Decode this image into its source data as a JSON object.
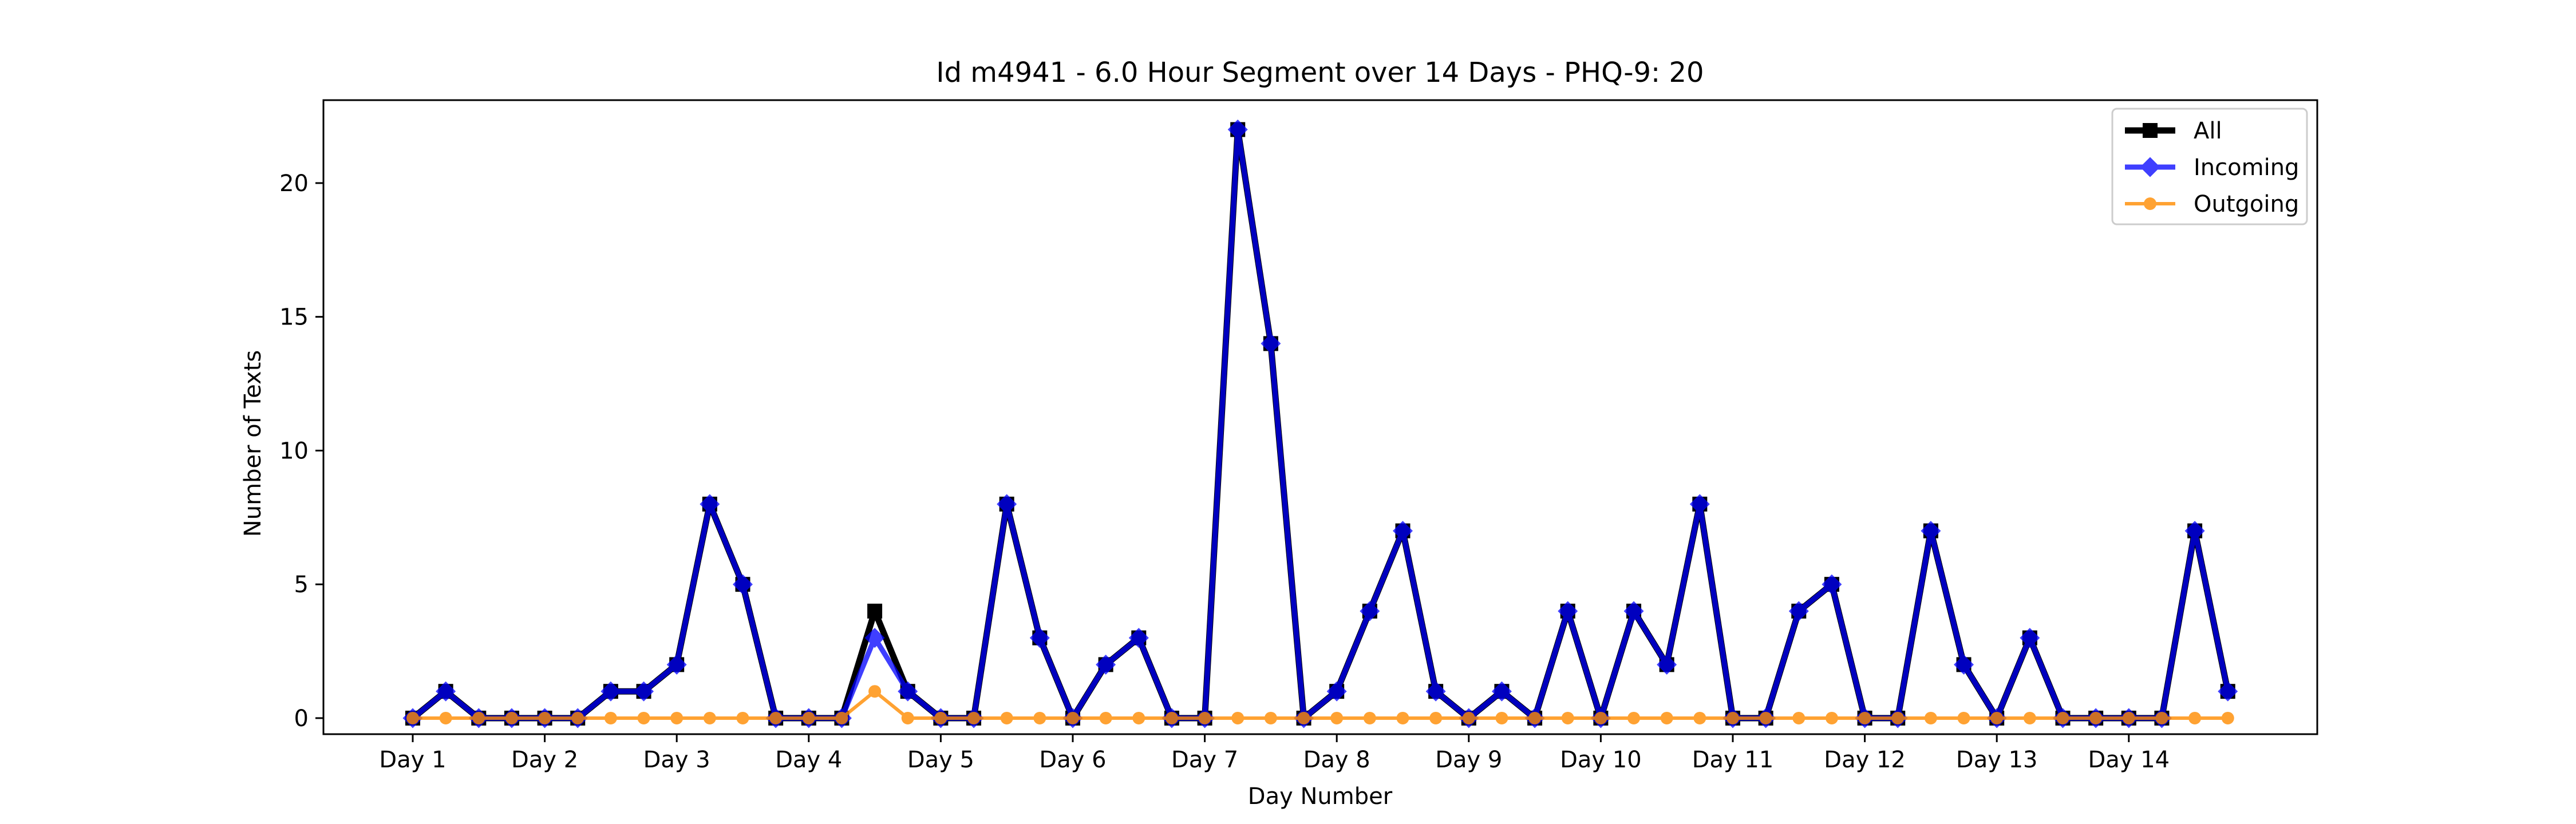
{
  "chart_data": {
    "type": "line",
    "title": "Id m4941 - 6.0 Hour Segment over 14 Days - PHQ-9: 20",
    "xlabel": "Day Number",
    "ylabel": "Number of Texts",
    "x_tick_labels": [
      "Day 1",
      "Day 2",
      "Day 3",
      "Day 4",
      "Day 5",
      "Day 6",
      "Day 7",
      "Day 8",
      "Day 9",
      "Day 10",
      "Day 11",
      "Day 12",
      "Day 13",
      "Day 14"
    ],
    "y_ticks": [
      0,
      5,
      10,
      15,
      20
    ],
    "ylim": [
      -0.6,
      23.1
    ],
    "points_per_day": 4,
    "legend_position": "top-right",
    "grid": false,
    "series": [
      {
        "name": "All",
        "color": "#000000",
        "marker": "square",
        "values": [
          0,
          1,
          0,
          0,
          0,
          0,
          1,
          1,
          2,
          8,
          5,
          0,
          0,
          0,
          4,
          1,
          0,
          0,
          8,
          3,
          0,
          2,
          3,
          0,
          0,
          22,
          14,
          0,
          1,
          4,
          7,
          1,
          0,
          1,
          0,
          4,
          0,
          4,
          2,
          8,
          0,
          0,
          4,
          5,
          0,
          0,
          7,
          2,
          0,
          3,
          0,
          0,
          0,
          0,
          7,
          1
        ]
      },
      {
        "name": "Incoming",
        "color": "#0000ff",
        "marker": "diamond",
        "values": [
          0,
          1,
          0,
          0,
          0,
          0,
          1,
          1,
          2,
          8,
          5,
          0,
          0,
          0,
          3,
          1,
          0,
          0,
          8,
          3,
          0,
          2,
          3,
          0,
          0,
          22,
          14,
          0,
          1,
          4,
          7,
          1,
          0,
          1,
          0,
          4,
          0,
          4,
          2,
          8,
          0,
          0,
          4,
          5,
          0,
          0,
          7,
          2,
          0,
          3,
          0,
          0,
          0,
          0,
          7,
          1
        ]
      },
      {
        "name": "Outgoing",
        "color": "#ff8c00",
        "marker": "circle",
        "values": [
          0,
          0,
          0,
          0,
          0,
          0,
          0,
          0,
          0,
          0,
          0,
          0,
          0,
          0,
          1,
          0,
          0,
          0,
          0,
          0,
          0,
          0,
          0,
          0,
          0,
          0,
          0,
          0,
          0,
          0,
          0,
          0,
          0,
          0,
          0,
          0,
          0,
          0,
          0,
          0,
          0,
          0,
          0,
          0,
          0,
          0,
          0,
          0,
          0,
          0,
          0,
          0,
          0,
          0,
          0,
          0
        ]
      }
    ]
  }
}
